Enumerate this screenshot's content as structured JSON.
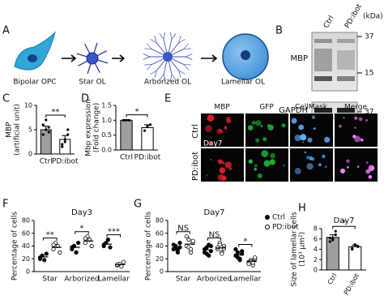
{
  "panel_labels": [
    "A",
    "B",
    "C",
    "D",
    "E",
    "F",
    "G",
    "H"
  ],
  "diagram": {
    "stages": [
      "Bipolar OPC",
      "Star OL",
      "Arborized OL",
      "Lamellar OL"
    ]
  },
  "blot": {
    "lanes": [
      "Ctrl",
      "PD:ibot"
    ],
    "unit": "(kDa)",
    "markers": [
      "37",
      "15",
      "37"
    ],
    "rows": [
      "MBP",
      "GAPDH"
    ]
  },
  "micrographs": {
    "columns": [
      "MBP",
      "GFP",
      "CellMask",
      "Merge"
    ],
    "rows": [
      "Ctrl",
      "PD:ibot"
    ],
    "tag": "Day7"
  },
  "chart_data": [
    {
      "type": "bar",
      "ylabel": [
        "MBP",
        "(artificial unit)"
      ],
      "categories": [
        "Ctrl",
        "PD:ibot"
      ],
      "values": [
        5,
        3
      ],
      "errors": [
        0.7,
        0.8
      ],
      "colors": [
        "#9e9e9e",
        "#ffffff"
      ],
      "points": [
        [
          6,
          5,
          4.5,
          4,
          7,
          5.5
        ],
        [
          2,
          3,
          4,
          1.5,
          2.5,
          5
        ]
      ],
      "ylim": [
        0,
        10
      ],
      "yticks": [
        0,
        5,
        10
      ],
      "significance": "**"
    },
    {
      "type": "bar",
      "ylabel": [
        "Mbp expression",
        "(Fold change)"
      ],
      "categories": [
        "Ctrl",
        "PD:ibot"
      ],
      "values": [
        1,
        0.75
      ],
      "errors": [
        0.02,
        0.1
      ],
      "colors": [
        "#9e9e9e",
        "#ffffff"
      ],
      "points": [
        [
          1,
          1,
          1
        ],
        [
          0.65,
          0.8,
          0.85
        ]
      ],
      "ylim": [
        0,
        1.5
      ],
      "yticks": [
        {
          "value": 0,
          "label": "0.0"
        },
        0.5,
        {
          "value": 1,
          "label": "1.0"
        },
        1.5
      ],
      "significance": "*"
    },
    {
      "type": "strip",
      "title": "Day3",
      "ylabel": [
        "Percentage of cells"
      ],
      "categories": [
        "Star",
        "Arborized",
        "Lamellar"
      ],
      "series": [
        {
          "name": "Ctrl",
          "marker": "filled",
          "values": [
            [
              22,
              25,
              18,
              28,
              20
            ],
            [
              35,
              40,
              30,
              45,
              38
            ],
            [
              40,
              45,
              50,
              38,
              42
            ]
          ],
          "means": [
            23,
            38,
            43
          ]
        },
        {
          "name": "PD:ibot",
          "marker": "open",
          "values": [
            [
              35,
              45,
              40,
              30,
              42
            ],
            [
              45,
              55,
              50,
              40,
              52
            ],
            [
              10,
              12,
              8,
              15,
              11
            ]
          ],
          "means": [
            38,
            48,
            11
          ]
        }
      ],
      "ylim": [
        0,
        80
      ],
      "yticks": [
        0,
        20,
        40,
        60,
        80
      ],
      "significance": [
        "**",
        "*",
        "***"
      ]
    },
    {
      "type": "strip",
      "title": "Day7",
      "ylabel": [
        "Percentage of cells"
      ],
      "categories": [
        "Star",
        "Arborized",
        "Lamellar"
      ],
      "series": [
        {
          "name": "Ctrl",
          "marker": "filled",
          "values": [
            [
              35,
              40,
              30,
              38,
              42,
              36,
              33,
              45
            ],
            [
              30,
              38,
              25,
              40,
              35,
              28,
              42,
              32
            ],
            [
              25,
              30,
              20,
              28,
              35,
              22,
              18,
              32
            ]
          ],
          "means": [
            37,
            34,
            26
          ]
        },
        {
          "name": "PD:ibot",
          "marker": "open",
          "values": [
            [
              40,
              50,
              30,
              45,
              55,
              38,
              35,
              48
            ],
            [
              35,
              45,
              30,
              40,
              38,
              42,
              28,
              36
            ],
            [
              15,
              18,
              10,
              20,
              12,
              16,
              14,
              22
            ]
          ],
          "means": [
            43,
            37,
            16
          ]
        }
      ],
      "ylim": [
        0,
        80
      ],
      "yticks": [
        0,
        20,
        40,
        60,
        80
      ],
      "significance": [
        "NS",
        "NS",
        "*"
      ],
      "legend": "right"
    },
    {
      "type": "bar",
      "title": "Day7",
      "ylabel": [
        "Size of lamellar cells",
        "(10³ μm²)"
      ],
      "categories": [
        "Ctrl",
        "PD:ibot"
      ],
      "values": [
        6.3,
        4.5
      ],
      "errors": [
        0.5,
        0.3
      ],
      "colors": [
        "#9e9e9e",
        "#ffffff"
      ],
      "points": [
        [
          5.5,
          6,
          7.5,
          6.2,
          5.8,
          6.8
        ],
        [
          4.2,
          4.8,
          4.5,
          4.0,
          4.9,
          4.6
        ]
      ],
      "ylim": [
        0,
        8
      ],
      "yticks": [
        0,
        2,
        4,
        6,
        8
      ],
      "significance": "*",
      "rotate_categories": true
    }
  ]
}
